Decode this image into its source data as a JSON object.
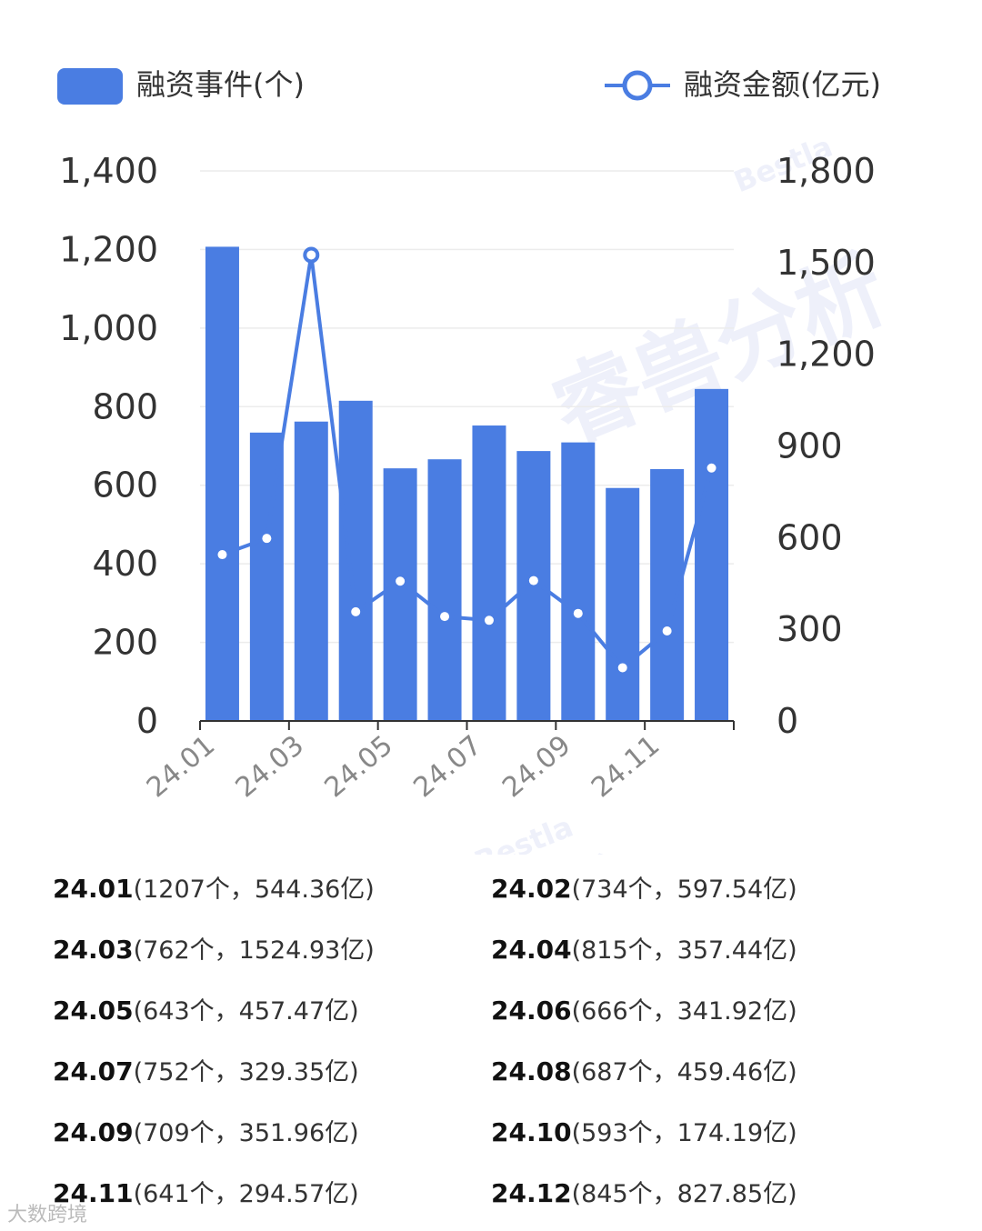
{
  "legend": {
    "bar_label": "融资事件(个)",
    "line_label": "融资金额(亿元)"
  },
  "watermark": {
    "brand": "睿兽分析",
    "sub": "Bestla"
  },
  "colors": {
    "bar": "#4a7de2",
    "line": "#4a7de2",
    "grid": "#ececec",
    "axis": "#333333",
    "point_fill": "#ffffff"
  },
  "chart_data": {
    "type": "bar",
    "categories": [
      "24.01",
      "24.02",
      "24.03",
      "24.04",
      "24.05",
      "24.06",
      "24.07",
      "24.08",
      "24.09",
      "24.10",
      "24.11",
      "24.12"
    ],
    "x_tick_labels": [
      "24.01",
      "24.03",
      "24.05",
      "24.07",
      "24.09",
      "24.11"
    ],
    "series": [
      {
        "name": "融资事件(个)",
        "type": "bar",
        "axis": "left",
        "values": [
          1207,
          734,
          762,
          815,
          643,
          666,
          752,
          687,
          709,
          593,
          641,
          845
        ]
      },
      {
        "name": "融资金额(亿元)",
        "type": "line",
        "axis": "right",
        "values": [
          544.36,
          597.54,
          1524.93,
          357.44,
          457.47,
          341.92,
          329.35,
          459.46,
          351.96,
          174.19,
          294.57,
          827.85
        ]
      }
    ],
    "y_left": {
      "ylim": [
        0,
        1400
      ],
      "ticks": [
        "0",
        "200",
        "400",
        "600",
        "800",
        "1,000",
        "1,200",
        "1,400"
      ]
    },
    "y_right": {
      "ylim": [
        0,
        1800
      ],
      "ticks": [
        "0",
        "300",
        "600",
        "900",
        "1,200",
        "1,500",
        "1,800"
      ]
    },
    "grid": true,
    "legend_position": "top"
  },
  "summary": [
    {
      "label": "24.01",
      "detail": "(1207个，544.36亿)"
    },
    {
      "label": "24.02",
      "detail": "(734个，597.54亿)"
    },
    {
      "label": "24.03",
      "detail": "(762个，1524.93亿)"
    },
    {
      "label": "24.04",
      "detail": "(815个，357.44亿)"
    },
    {
      "label": "24.05",
      "detail": "(643个，457.47亿)"
    },
    {
      "label": "24.06",
      "detail": "(666个，341.92亿)"
    },
    {
      "label": "24.07",
      "detail": "(752个，329.35亿)"
    },
    {
      "label": "24.08",
      "detail": "(687个，459.46亿)"
    },
    {
      "label": "24.09",
      "detail": "(709个，351.96亿)"
    },
    {
      "label": "24.10",
      "detail": "(593个，174.19亿)"
    },
    {
      "label": "24.11",
      "detail": "(641个，294.57亿)"
    },
    {
      "label": "24.12",
      "detail": "(845个，827.85亿)"
    }
  ],
  "footer": {
    "source_mark": "大数跨境"
  }
}
